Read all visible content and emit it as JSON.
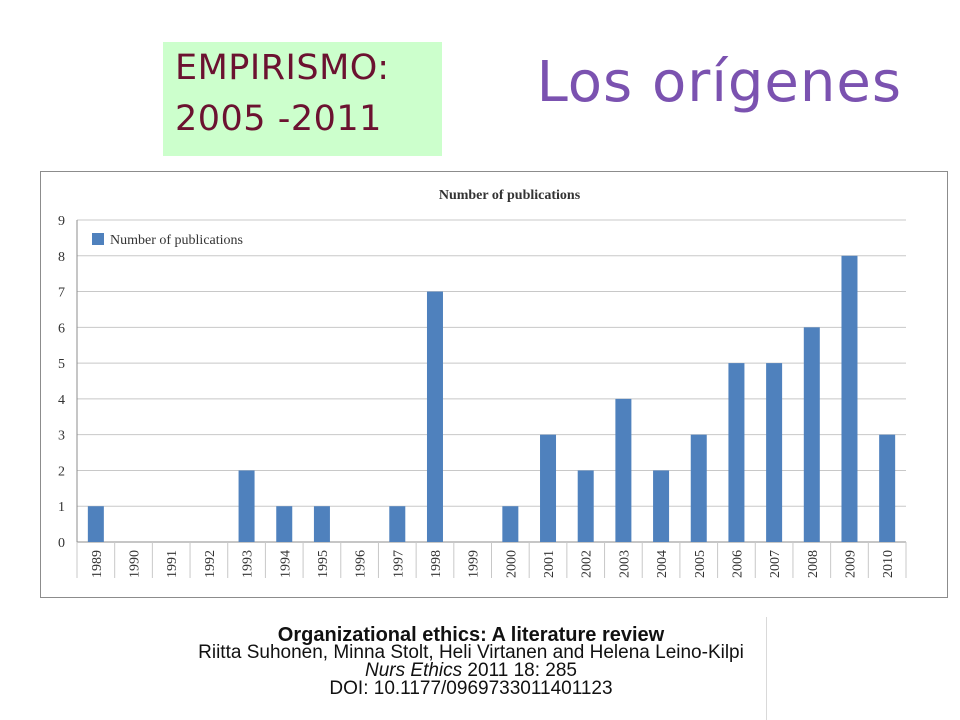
{
  "tag": {
    "line1": "EMPIRISMO:",
    "line2": "2005 -2011"
  },
  "page_title": "Los orígenes",
  "chart_data": {
    "type": "bar",
    "title": "Number of publications",
    "legend": {
      "label": "Number of publications",
      "placement": "top-left"
    },
    "categories": [
      "1989",
      "1990",
      "1991",
      "1992",
      "1993",
      "1994",
      "1995",
      "1996",
      "1997",
      "1998",
      "1999",
      "2000",
      "2001",
      "2002",
      "2003",
      "2004",
      "2005",
      "2006",
      "2007",
      "2008",
      "2009",
      "2010"
    ],
    "values": [
      1,
      0,
      0,
      0,
      2,
      1,
      1,
      0,
      1,
      7,
      0,
      1,
      3,
      2,
      4,
      2,
      3,
      5,
      5,
      6,
      8,
      3
    ],
    "ylim": [
      0,
      9
    ],
    "yticks": [
      0,
      1,
      2,
      3,
      4,
      5,
      6,
      7,
      8,
      9
    ],
    "grid": true,
    "bar_color": "#4f81bd",
    "xlabel": "",
    "ylabel": ""
  },
  "citation": {
    "title": "Organizational ethics: A literature review",
    "authors": "Riitta Suhonen, Minna Stolt, Heli Virtanen and Helena Leino-Kilpi",
    "journal_name": "Nurs Ethics",
    "journal_detail": " 2011 18: 285",
    "doi": "DOI: 10.1177/0969733011401123"
  }
}
